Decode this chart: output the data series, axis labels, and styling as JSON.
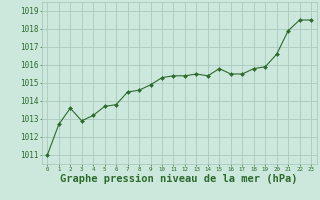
{
  "x": [
    0,
    1,
    2,
    3,
    4,
    5,
    6,
    7,
    8,
    9,
    10,
    11,
    12,
    13,
    14,
    15,
    16,
    17,
    18,
    19,
    20,
    21,
    22,
    23
  ],
  "y": [
    1011.0,
    1012.7,
    1013.6,
    1012.9,
    1013.2,
    1013.7,
    1013.8,
    1014.5,
    1014.6,
    1014.9,
    1015.3,
    1015.4,
    1015.4,
    1015.5,
    1015.4,
    1015.8,
    1015.5,
    1015.5,
    1015.8,
    1015.9,
    1016.6,
    1017.9,
    1018.5,
    1018.5
  ],
  "line_color": "#2d6a2d",
  "marker_color": "#2d6a2d",
  "bg_color": "#cce8dc",
  "grid_color": "#aac8bc",
  "xlabel": "Graphe pression niveau de la mer (hPa)",
  "xlabel_fontsize": 7.5,
  "ylabel_ticks": [
    1011,
    1012,
    1013,
    1014,
    1015,
    1016,
    1017,
    1018,
    1019
  ],
  "xlim": [
    -0.5,
    23.5
  ],
  "ylim": [
    1010.5,
    1019.5
  ],
  "tick_color": "#2d6a2d",
  "label_color": "#2d6a2d",
  "ytick_fontsize": 5.5,
  "xtick_fontsize": 4.2
}
